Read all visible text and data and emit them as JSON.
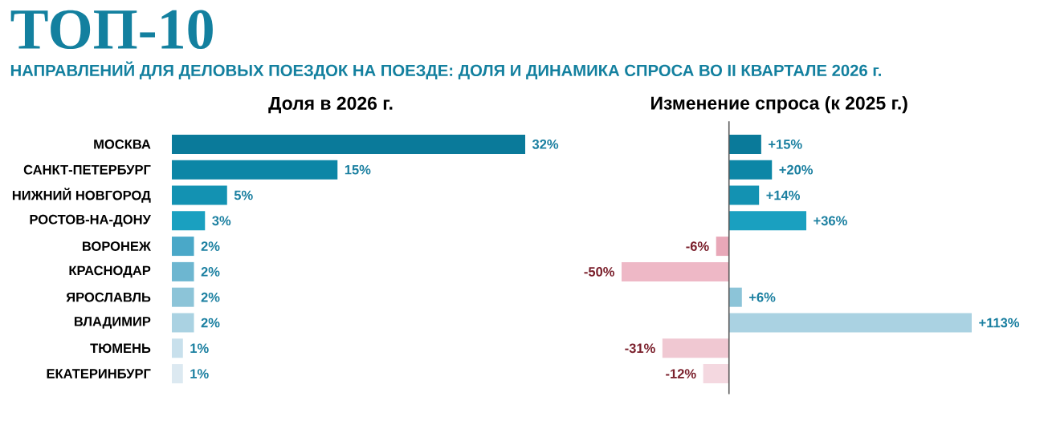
{
  "chart_data": [
    {
      "type": "other",
      "title": "ТОП-10",
      "subtitle": "НАПРАВЛЕНИЙ ДЛЯ ДЕЛОВЫХ ПОЕЗДОК НА ПОЕЗДЕ: ДОЛЯ И ДИНАМИКА СПРОСА ВО II КВАРТАЛЕ 2026 г."
    },
    {
      "type": "bar",
      "orientation": "horizontal",
      "title": "Доля в 2026 г.",
      "tick_labels": "y",
      "categories": [
        "МОСКВА",
        "САНКТ-ПЕТЕРБУРГ",
        "НИЖНИЙ НОВГОРОД",
        "РОСТОВ-НА-ДОНУ",
        "ВОРОНЕЖ",
        "КРАСНОДАР",
        "ЯРОСЛАВЛЬ",
        "ВЛАДИМИР",
        "ТЮМЕНЬ",
        "ЕКАТЕРИНБУРГ"
      ],
      "values": [
        32,
        15,
        5,
        3,
        2,
        2,
        2,
        2,
        1,
        1
      ],
      "colors": [
        "#0a7a9a",
        "#0c86a6",
        "#1392b2",
        "#1aa0c0",
        "#4aa8c8",
        "#6db6d0",
        "#8cc4d8",
        "#aad2e2",
        "#c8e0ec",
        "#dce9f1"
      ],
      "value_labels": [
        "32%",
        "15%",
        "5%",
        "3%",
        "2%",
        "2%",
        "2%",
        "2%",
        "1%",
        "1%"
      ]
    },
    {
      "type": "bar",
      "orientation": "horizontal",
      "title": "Изменение спроса (к 2025 г.)",
      "categories": [
        null,
        null,
        null,
        null,
        null,
        null,
        null,
        null,
        null,
        null
      ],
      "values": [
        15,
        20,
        14,
        36,
        -6,
        -50,
        6,
        113,
        -31,
        -12
      ],
      "colors": [
        "#0a7a9a",
        "#0c86a6",
        "#1392b2",
        "#1aa0c0",
        "#e8a8b8",
        "#eeb8c6",
        "#8cc4d8",
        "#aad2e2",
        "#f0c8d2",
        "#f4d8e0"
      ],
      "value_labels": [
        "+15%",
        "+20%",
        "+14%",
        "+36%",
        "-6%",
        "-50%",
        "+6%",
        "+113%",
        "-31%",
        "-12%"
      ]
    }
  ]
}
